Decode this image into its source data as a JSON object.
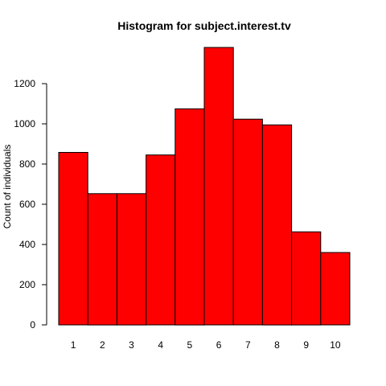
{
  "chart_data": {
    "type": "bar",
    "title": "Histogram for subject.interest.tv",
    "xlabel": "",
    "ylabel": "Count of individuals",
    "categories": [
      "1",
      "2",
      "3",
      "4",
      "5",
      "6",
      "7",
      "8",
      "9",
      "10"
    ],
    "values": [
      858,
      653,
      653,
      845,
      1075,
      1380,
      1023,
      995,
      463,
      360
    ],
    "ylim": [
      0,
      1380
    ],
    "yticks": [
      0,
      200,
      400,
      600,
      800,
      1000,
      1200
    ],
    "bar_color": "#ff0000",
    "grid": false
  }
}
